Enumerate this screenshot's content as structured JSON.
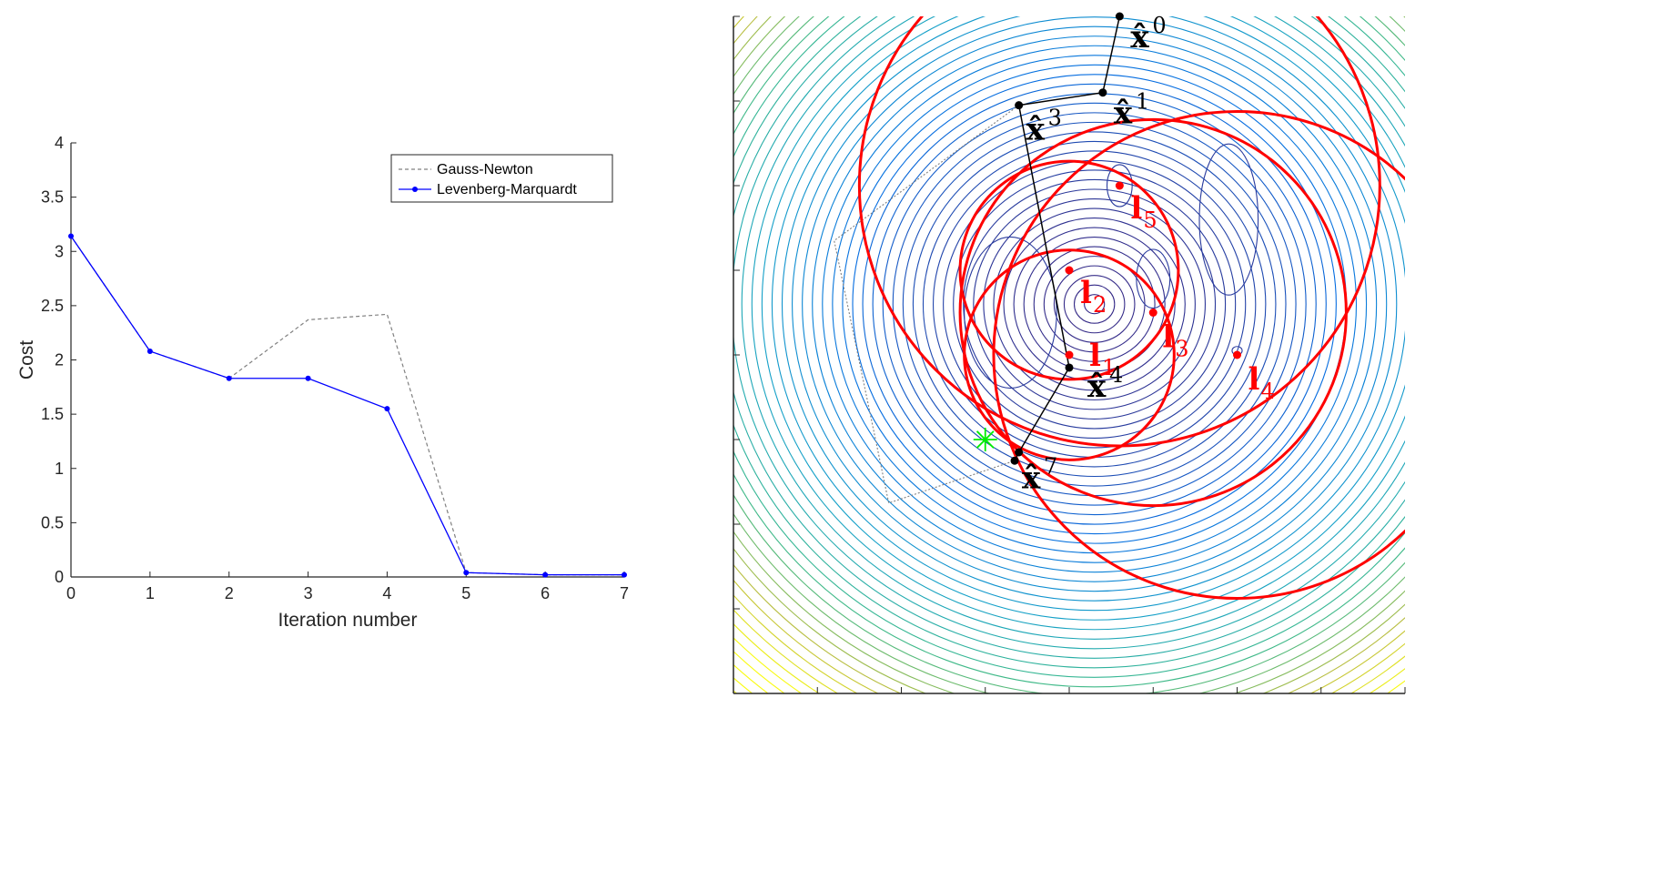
{
  "colors": {
    "gauss_newton": "#808080",
    "levenberg_marquardt": "#0000ff",
    "landmark": "#ff0000",
    "path": "#000000",
    "true_position": "#00ee00"
  },
  "chart_data": [
    {
      "type": "line",
      "xlabel": "Iteration number",
      "ylabel": "Cost",
      "xlim": [
        0,
        7
      ],
      "ylim": [
        0,
        4
      ],
      "x_ticks": [
        "0",
        "1",
        "2",
        "3",
        "4",
        "5",
        "6",
        "7"
      ],
      "y_ticks": [
        "0",
        "0.5",
        "1",
        "1.5",
        "2",
        "2.5",
        "3",
        "3.5",
        "4"
      ],
      "legend_position": "top-right",
      "x": [
        0,
        1,
        2,
        3,
        4,
        5,
        6,
        7
      ],
      "series": [
        {
          "name": "Gauss-Newton",
          "style": "dashed",
          "values": [
            3.14,
            2.08,
            1.83,
            2.37,
            2.42,
            0.04,
            0.02,
            0.02
          ]
        },
        {
          "name": "Levenberg-Marquardt",
          "style": "solid-dots",
          "values": [
            3.14,
            2.08,
            1.83,
            1.83,
            1.55,
            0.04,
            0.02,
            0.02
          ]
        }
      ]
    },
    {
      "type": "contour",
      "colormap": "parula",
      "tick_labels_shown": false,
      "landmarks": [
        {
          "label": "l",
          "sub": "1",
          "x": 3.0,
          "y": 3.0,
          "range": 1.25
        },
        {
          "label": "l",
          "sub": "2",
          "x": 3.0,
          "y": 4.0,
          "range": 1.3
        },
        {
          "label": "l",
          "sub": "3",
          "x": 4.0,
          "y": 3.5,
          "range": 2.3
        },
        {
          "label": "l",
          "sub": "4",
          "x": 5.0,
          "y": 3.0,
          "range": 2.9
        },
        {
          "label": "l",
          "sub": "5",
          "x": 3.6,
          "y": 5.0,
          "range": 3.1
        }
      ],
      "estimates": [
        {
          "label": "x̂",
          "sup": "0",
          "x": 3.6,
          "y": 7.0
        },
        {
          "label": "x̂",
          "sup": "1",
          "x": 3.4,
          "y": 6.1
        },
        {
          "label": "x̂",
          "sup": "3",
          "x": 2.4,
          "y": 5.95
        },
        {
          "label": "x̂",
          "sup": "4",
          "x": 3.0,
          "y": 2.85
        },
        {
          "label": "x̂",
          "sup": "7",
          "x": 2.35,
          "y": 1.75
        }
      ],
      "estimate_path": [
        [
          3.6,
          7.0
        ],
        [
          3.4,
          6.1
        ],
        [
          2.4,
          5.95
        ],
        [
          3.0,
          2.85
        ],
        [
          2.4,
          1.85
        ],
        [
          2.35,
          1.75
        ]
      ],
      "gauss_newton_path": [
        [
          2.4,
          5.95
        ],
        [
          0.2,
          4.35
        ],
        [
          0.85,
          1.25
        ],
        [
          2.35,
          1.75
        ]
      ],
      "true_position": {
        "x": 2.0,
        "y": 2.0
      }
    }
  ]
}
